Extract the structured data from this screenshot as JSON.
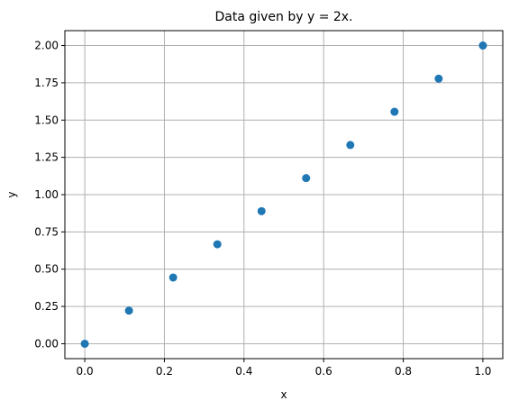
{
  "chart_data": {
    "type": "scatter",
    "title": "Data given by y = 2x.",
    "xlabel": "x",
    "ylabel": "y",
    "xlim": [
      -0.05,
      1.05
    ],
    "ylim": [
      -0.1,
      2.1
    ],
    "grid": true,
    "marker_color": "#1f77b4",
    "x_ticks": [
      0.0,
      0.2,
      0.4,
      0.6,
      0.8,
      1.0
    ],
    "x_tick_labels": [
      "0.0",
      "0.2",
      "0.4",
      "0.6",
      "0.8",
      "1.0"
    ],
    "y_ticks": [
      0.0,
      0.25,
      0.5,
      0.75,
      1.0,
      1.25,
      1.5,
      1.75,
      2.0
    ],
    "y_tick_labels": [
      "0.00",
      "0.25",
      "0.50",
      "0.75",
      "1.00",
      "1.25",
      "1.50",
      "1.75",
      "2.00"
    ],
    "series": [
      {
        "x": [
          0.0,
          0.111,
          0.222,
          0.333,
          0.444,
          0.556,
          0.667,
          0.778,
          0.889,
          1.0
        ],
        "y": [
          0.0,
          0.222,
          0.444,
          0.667,
          0.889,
          1.111,
          1.333,
          1.556,
          1.778,
          2.0
        ]
      }
    ]
  }
}
